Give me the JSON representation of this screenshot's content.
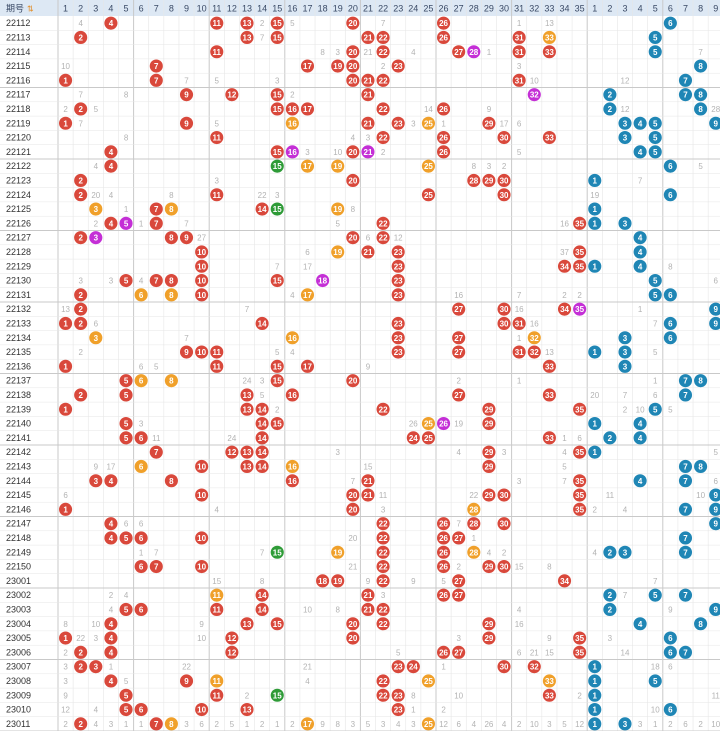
{
  "header": {
    "issue_label": "期号",
    "front_numbers": [
      "1",
      "2",
      "3",
      "4",
      "5",
      "6",
      "7",
      "8",
      "9",
      "10",
      "11",
      "12",
      "13",
      "14",
      "15",
      "16",
      "17",
      "18",
      "19",
      "20",
      "21",
      "22",
      "23",
      "24",
      "25",
      "26",
      "27",
      "28",
      "29",
      "30",
      "31",
      "32",
      "33",
      "34",
      "35"
    ],
    "back_numbers": [
      "1",
      "2",
      "3",
      "4",
      "5",
      "6",
      "7",
      "8",
      "9",
      "10",
      "11",
      "12"
    ]
  },
  "colors": {
    "red_ball": "#d9483b",
    "orange_ball": "#f0a02a",
    "green_ball": "#2e9b37",
    "magenta_ball": "#c42fd6",
    "blue_ball": "#1f86b5",
    "header_bg": "#dde8f4",
    "grid_line": "#e6e6e6",
    "group_line": "#c9c9c9"
  },
  "chart_data": {
    "type": "table",
    "rows": [
      {
        "issue": "22112",
        "front": [
          4,
          11,
          13,
          15,
          20,
          26
        ],
        "front_hot": [],
        "back": [
          6,
          12
        ],
        "miss": {
          "2": "4",
          "14": "2",
          "15": "40",
          "16": "5",
          "22": "7",
          "31": "1",
          "33": "13"
        }
      },
      {
        "issue": "22113",
        "front": [
          2,
          13,
          15,
          21,
          22,
          26,
          31,
          33
        ],
        "front_hot": [],
        "back": [
          5,
          12
        ],
        "miss": {
          "14": "7"
        }
      },
      {
        "issue": "22114",
        "front": [
          11,
          20,
          22,
          27,
          31,
          33
        ],
        "front_hot": [
          28
        ],
        "back": [
          5,
          10
        ],
        "miss": {
          "18": "8",
          "19": "3",
          "21": "21",
          "24": "4",
          "29": "1",
          "40": "4",
          "43": "7"
        }
      },
      {
        "issue": "22115",
        "front": [
          7,
          17,
          19,
          20,
          23
        ],
        "front_hot": [],
        "back": [
          8,
          10
        ],
        "miss": {
          "1": "10",
          "22": "2",
          "31": "3"
        }
      },
      {
        "issue": "22116",
        "front": [
          1,
          7,
          20,
          21,
          22,
          31
        ],
        "front_hot": [],
        "back": [
          7,
          12
        ],
        "miss": {
          "9": "7",
          "11": "5",
          "15": "3",
          "32": "10",
          "38": "12"
        }
      },
      {
        "issue": "22117",
        "front": [
          9,
          12,
          15,
          21
        ],
        "front_hot": [
          32
        ],
        "back": [
          2,
          7,
          8
        ],
        "miss": {
          "2": "7",
          "5": "8",
          "16": "2"
        }
      },
      {
        "issue": "22118",
        "front": [
          2,
          16,
          15,
          17,
          22,
          26
        ],
        "front_hot": [],
        "back": [
          2,
          8
        ],
        "miss": {
          "1": "2",
          "3": "5",
          "25": "14",
          "29": "9",
          "38": "12",
          "44": "28"
        }
      },
      {
        "issue": "22119",
        "front": [
          1,
          9,
          16,
          21,
          23,
          25,
          29
        ],
        "front_hot": [],
        "back": [
          3,
          4,
          5,
          9
        ],
        "miss": {
          "2": "7",
          "11": "5",
          "24": "3",
          "26": "1",
          "30": "17",
          "31": "6"
        }
      },
      {
        "issue": "22120",
        "front": [
          11,
          22,
          26,
          30,
          33
        ],
        "front_hot": [],
        "back": [
          3,
          5
        ],
        "miss": {
          "5": "8",
          "20": "4",
          "21": "3",
          "40": "1"
        }
      },
      {
        "issue": "22121",
        "front": [
          4,
          15,
          20,
          26
        ],
        "front_hot": [
          16,
          21
        ],
        "back": [
          4,
          5
        ],
        "miss": {
          "17": "3",
          "19": "10",
          "22": "2",
          "31": "5",
          "47": "5"
        }
      },
      {
        "issue": "22122",
        "front": [
          4,
          15,
          17,
          19,
          25
        ],
        "front_hot": [],
        "back": [
          6,
          12
        ],
        "miss": {
          "3": "4",
          "28": "8",
          "29": "3",
          "30": "2",
          "43": "5",
          "45": "8"
        }
      },
      {
        "issue": "22123",
        "front": [
          2,
          20,
          28,
          29,
          30
        ],
        "front_hot": [],
        "back": [
          1,
          10,
          12
        ],
        "miss": {
          "11": "3",
          "39": "7"
        }
      },
      {
        "issue": "22124",
        "front": [
          2,
          11,
          25,
          30
        ],
        "front_hot": [],
        "back": [
          6,
          12
        ],
        "miss": {
          "3": "20",
          "4": "4",
          "8": "8",
          "14": "22",
          "15": "3",
          "36": "19",
          "46": "16"
        }
      },
      {
        "issue": "22125",
        "front": [
          3,
          7,
          8,
          14,
          15,
          19
        ],
        "front_hot": [],
        "back": [
          1,
          11
        ],
        "miss": {
          "5": "1",
          "20": "8"
        }
      },
      {
        "issue": "22126",
        "front": [
          4,
          7,
          22,
          35
        ],
        "front_hot": [
          5
        ],
        "back": [
          1,
          3
        ],
        "miss": {
          "3": "2",
          "6": "1",
          "9": "7",
          "19": "5",
          "34": "16",
          "38": "5"
        }
      },
      {
        "issue": "22127",
        "front": [
          2,
          8,
          9,
          20,
          22
        ],
        "front_hot": [
          3
        ],
        "back": [
          4,
          10
        ],
        "miss": {
          "10": "27",
          "21": "6",
          "23": "12"
        }
      },
      {
        "issue": "22128",
        "front": [
          10,
          19,
          21,
          23,
          35
        ],
        "front_hot": [],
        "back": [
          4,
          10
        ],
        "miss": {
          "17": "6",
          "34": "37"
        }
      },
      {
        "issue": "22129",
        "front": [
          10,
          23,
          34,
          35
        ],
        "front_hot": [],
        "back": [
          1,
          4
        ],
        "miss": {
          "15": "7",
          "17": "17",
          "41": "8"
        }
      },
      {
        "issue": "22130",
        "front": [
          5,
          7,
          8,
          10,
          15,
          23
        ],
        "front_hot": [
          18
        ],
        "back": [
          5,
          10
        ],
        "miss": {
          "2": "3",
          "4": "3",
          "6": "4",
          "44": "6"
        }
      },
      {
        "issue": "22131",
        "front": [
          2,
          6,
          8,
          10,
          17,
          23
        ],
        "front_hot": [],
        "back": [
          5,
          6
        ],
        "miss": {
          "16": "4",
          "27": "16",
          "31": "7",
          "34": "2",
          "35": "2",
          "40": "9",
          "45": "12",
          "47": "7"
        }
      },
      {
        "issue": "22132",
        "front": [
          2,
          27,
          30,
          34
        ],
        "front_hot": [
          35
        ],
        "back": [
          9,
          12
        ],
        "miss": {
          "1": "13",
          "13": "7",
          "31": "16",
          "39": "1"
        }
      },
      {
        "issue": "22133",
        "front": [
          1,
          2,
          14,
          23,
          30,
          31
        ],
        "front_hot": [],
        "back": [
          6,
          9,
          12
        ],
        "miss": {
          "3": "6",
          "32": "16",
          "40": "7"
        }
      },
      {
        "issue": "22134",
        "front": [
          3,
          16,
          23,
          27,
          32
        ],
        "front_hot": [],
        "back": [
          3,
          6
        ],
        "miss": {
          "9": "7",
          "31": "1"
        }
      },
      {
        "issue": "22135",
        "front": [
          9,
          10,
          11,
          23,
          27,
          31,
          32
        ],
        "front_hot": [],
        "back": [
          1,
          3
        ],
        "miss": {
          "2": "2",
          "15": "5",
          "16": "4",
          "33": "13",
          "40": "5",
          "46": "10"
        }
      },
      {
        "issue": "22136",
        "front": [
          1,
          11,
          15,
          17,
          33
        ],
        "front_hot": [],
        "back": [
          3,
          11
        ],
        "miss": {
          "6": "6",
          "7": "5",
          "21": "9",
          "45": "13",
          "46": "18"
        }
      },
      {
        "issue": "22137",
        "front": [
          5,
          6,
          8,
          15,
          20
        ],
        "front_hot": [],
        "back": [
          7,
          8
        ],
        "miss": {
          "13": "24",
          "14": "3",
          "27": "2",
          "31": "1",
          "40": "1"
        }
      },
      {
        "issue": "22138",
        "front": [
          2,
          5,
          13,
          16,
          27,
          33
        ],
        "front_hot": [],
        "back": [
          7,
          12
        ],
        "miss": {
          "14": "5",
          "33": "2",
          "36": "20",
          "38": "7",
          "40": "6"
        }
      },
      {
        "issue": "22139",
        "front": [
          1,
          13,
          14,
          22,
          29,
          35
        ],
        "front_hot": [],
        "back": [
          5,
          12
        ],
        "miss": {
          "15": "2",
          "29": "16",
          "38": "2",
          "39": "10",
          "41": "5"
        }
      },
      {
        "issue": "22140",
        "front": [
          5,
          14,
          15,
          25,
          29
        ],
        "front_hot": [
          26
        ],
        "back": [
          1,
          4
        ],
        "miss": {
          "6": "3",
          "24": "26",
          "26": "15",
          "27": "19",
          "39": "1"
        }
      },
      {
        "issue": "22141",
        "front": [
          5,
          6,
          14,
          24,
          25,
          33
        ],
        "front_hot": [],
        "back": [
          2,
          4,
          12
        ],
        "miss": {
          "7": "11",
          "12": "24",
          "34": "1",
          "35": "6"
        }
      },
      {
        "issue": "22142",
        "front": [
          7,
          12,
          13,
          14,
          29,
          35
        ],
        "front_hot": [],
        "back": [
          1,
          11
        ],
        "miss": {
          "19": "3",
          "27": "4",
          "30": "3",
          "34": "4",
          "44": "5"
        }
      },
      {
        "issue": "22143",
        "front": [
          6,
          10,
          13,
          14,
          16,
          29
        ],
        "front_hot": [],
        "back": [
          7,
          8
        ],
        "miss": {
          "3": "9",
          "4": "17",
          "21": "15",
          "34": "5",
          "43": "1"
        }
      },
      {
        "issue": "22144",
        "front": [
          3,
          4,
          8,
          16,
          21,
          35
        ],
        "front_hot": [],
        "back": [
          4,
          7
        ],
        "miss": {
          "20": "7",
          "31": "3",
          "34": "7",
          "44": "6",
          "47": "1"
        }
      },
      {
        "issue": "22145",
        "front": [
          10,
          20,
          21,
          29,
          30,
          35
        ],
        "front_hot": [],
        "back": [
          9
        ],
        "miss": {
          "1": "6",
          "22": "11",
          "28": "22",
          "37": "11",
          "43": "10"
        }
      },
      {
        "issue": "22146",
        "front": [
          1,
          20,
          28,
          35
        ],
        "front_hot": [],
        "back": [
          7,
          9
        ],
        "miss": {
          "11": "4",
          "22": "3",
          "36": "2",
          "38": "4",
          "44": "8"
        }
      },
      {
        "issue": "22147",
        "front": [
          4,
          22,
          26,
          28,
          30
        ],
        "front_hot": [],
        "back": [
          9,
          10,
          11
        ],
        "miss": {
          "5": "6",
          "6": "6",
          "27": "7",
          "44": "1",
          "47": "7"
        }
      },
      {
        "issue": "22148",
        "front": [
          4,
          5,
          6,
          10,
          22,
          26,
          27
        ],
        "front_hot": [],
        "back": [
          7,
          12
        ],
        "miss": {
          "20": "20",
          "27": "8",
          "28": "1"
        }
      },
      {
        "issue": "22149",
        "front": [
          15,
          19,
          22,
          26,
          28
        ],
        "front_hot": [],
        "back": [
          2,
          3,
          7
        ],
        "miss": {
          "6": "1",
          "7": "7",
          "14": "7",
          "29": "4",
          "30": "2",
          "36": "4"
        }
      },
      {
        "issue": "22150",
        "front": [
          6,
          7,
          10,
          22,
          26,
          29,
          30
        ],
        "front_hot": [],
        "back": [
          11
        ],
        "miss": {
          "20": "21",
          "27": "2",
          "29": "1",
          "31": "15",
          "33": "8"
        }
      },
      {
        "issue": "23001",
        "front": [
          18,
          19,
          22,
          27,
          34
        ],
        "front_hot": [],
        "back": [
          11,
          12
        ],
        "miss": {
          "11": "15",
          "14": "8",
          "21": "9",
          "24": "9",
          "26": "5",
          "40": "7"
        }
      },
      {
        "issue": "23002",
        "front": [
          11,
          14,
          21,
          26,
          27
        ],
        "front_hot": [],
        "back": [
          2,
          7,
          5
        ],
        "miss": {
          "4": "2",
          "5": "4",
          "22": "3",
          "38": "7"
        }
      },
      {
        "issue": "23003",
        "front": [
          5,
          6,
          11,
          14,
          21,
          22
        ],
        "front_hot": [],
        "back": [
          2,
          9,
          10
        ],
        "miss": {
          "4": "4",
          "17": "10",
          "19": "8",
          "31": "4",
          "41": "9",
          "44": "10"
        }
      },
      {
        "issue": "23004",
        "front": [
          4,
          13,
          15,
          20,
          22,
          29
        ],
        "front_hot": [],
        "back": [
          4,
          8,
          11
        ],
        "miss": {
          "1": "8",
          "3": "10",
          "10": "9",
          "31": "16"
        }
      },
      {
        "issue": "23005",
        "front": [
          1,
          4,
          12,
          20,
          29,
          35
        ],
        "front_hot": [],
        "back": [
          6,
          11
        ],
        "miss": {
          "2": "22",
          "3": "3",
          "10": "10",
          "27": "3",
          "33": "9",
          "37": "3"
        }
      },
      {
        "issue": "23006",
        "front": [
          2,
          4,
          12,
          26,
          27,
          35
        ],
        "front_hot": [],
        "back": [
          6,
          7
        ],
        "miss": {
          "1": "2",
          "23": "5",
          "31": "6",
          "32": "21",
          "33": "15",
          "38": "14"
        }
      },
      {
        "issue": "23007",
        "front": [
          2,
          3,
          23,
          24,
          30,
          32
        ],
        "front_hot": [],
        "back": [
          1
        ],
        "miss": {
          "1": "3",
          "4": "1",
          "9": "22",
          "17": "21",
          "23": "9",
          "26": "1",
          "40": "18",
          "41": "6"
        }
      },
      {
        "issue": "23008",
        "front": [
          4,
          9,
          11,
          22,
          25,
          33
        ],
        "front_hot": [],
        "back": [
          1,
          5
        ],
        "miss": {
          "1": "3",
          "5": "5",
          "17": "4",
          "46": "28"
        }
      },
      {
        "issue": "23009",
        "front": [
          5,
          11,
          15,
          22,
          23,
          33
        ],
        "front_hot": [],
        "back": [
          1,
          11
        ],
        "miss": {
          "1": "9",
          "13": "2",
          "24": "8",
          "27": "10",
          "35": "2",
          "44": "11"
        }
      },
      {
        "issue": "23010",
        "front": [
          5,
          6,
          10,
          13,
          23
        ],
        "front_hot": [],
        "back": [
          1,
          6
        ],
        "miss": {
          "1": "12",
          "3": "4",
          "24": "1",
          "26": "2",
          "40": "10"
        }
      },
      {
        "issue": "23011",
        "front": [
          2,
          7,
          8,
          17,
          25
        ],
        "front_hot": [],
        "back": [
          1,
          3
        ],
        "miss": {
          "1": "2",
          "3": "4",
          "4": "3",
          "5": "1",
          "6": "1",
          "9": "3",
          "10": "6",
          "11": "2",
          "12": "5",
          "13": "1",
          "14": "2",
          "15": "1",
          "16": "2",
          "18": "9",
          "19": "8",
          "20": "3",
          "21": "5",
          "22": "3",
          "23": "4",
          "24": "3",
          "25": "3",
          "26": "12",
          "27": "6",
          "28": "4",
          "29": "26",
          "30": "4",
          "31": "2",
          "32": "10",
          "33": "3",
          "34": "5",
          "35": "12",
          "38": "7",
          "39": "3",
          "40": "1",
          "41": "2",
          "42": "6",
          "43": "2",
          "44": "10",
          "45": "12"
        }
      }
    ]
  }
}
